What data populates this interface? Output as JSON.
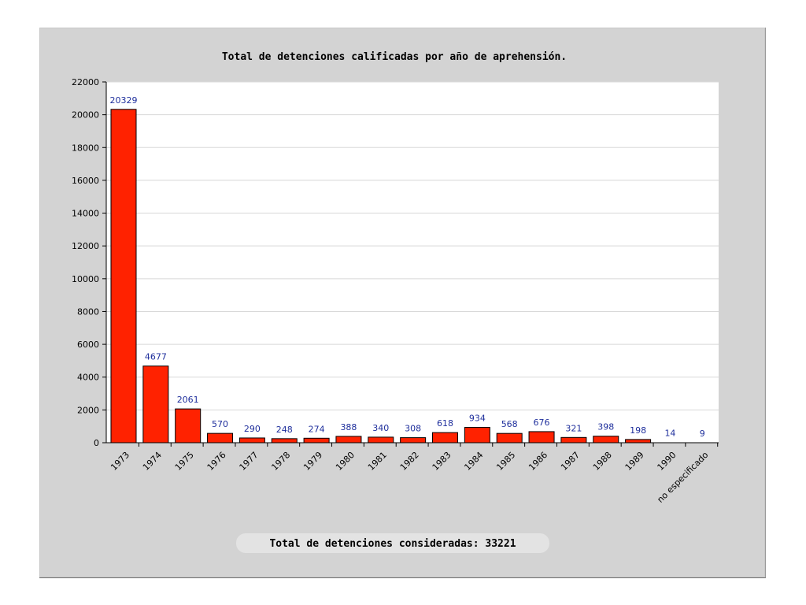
{
  "chart_data": {
    "type": "bar",
    "title": "Total de detenciones calificadas por año de aprehensión.",
    "categories": [
      "1973",
      "1974",
      "1975",
      "1976",
      "1977",
      "1978",
      "1979",
      "1980",
      "1981",
      "1982",
      "1983",
      "1984",
      "1985",
      "1986",
      "1987",
      "1988",
      "1989",
      "1990",
      "no especificado"
    ],
    "values": [
      20329,
      4677,
      2061,
      570,
      290,
      248,
      274,
      388,
      340,
      308,
      618,
      934,
      568,
      676,
      321,
      398,
      198,
      14,
      9
    ],
    "data_labels": [
      "20329",
      "4677",
      "2061",
      "570",
      "290",
      "248",
      "274",
      "388",
      "340",
      "308",
      "618",
      "934",
      "568",
      "676",
      "321",
      "398",
      "198",
      "14",
      "9"
    ],
    "ylim": [
      0,
      22000
    ],
    "y_ticks": [
      "0",
      "2000",
      "4000",
      "6000",
      "8000",
      "10000",
      "12000",
      "14000",
      "16000",
      "18000",
      "20000",
      "22000"
    ],
    "grid": true,
    "bar_color": "#ff2200",
    "label_color": "#1f2f9c"
  },
  "footer": {
    "total_text": "Total de detenciones consideradas: 33221"
  }
}
